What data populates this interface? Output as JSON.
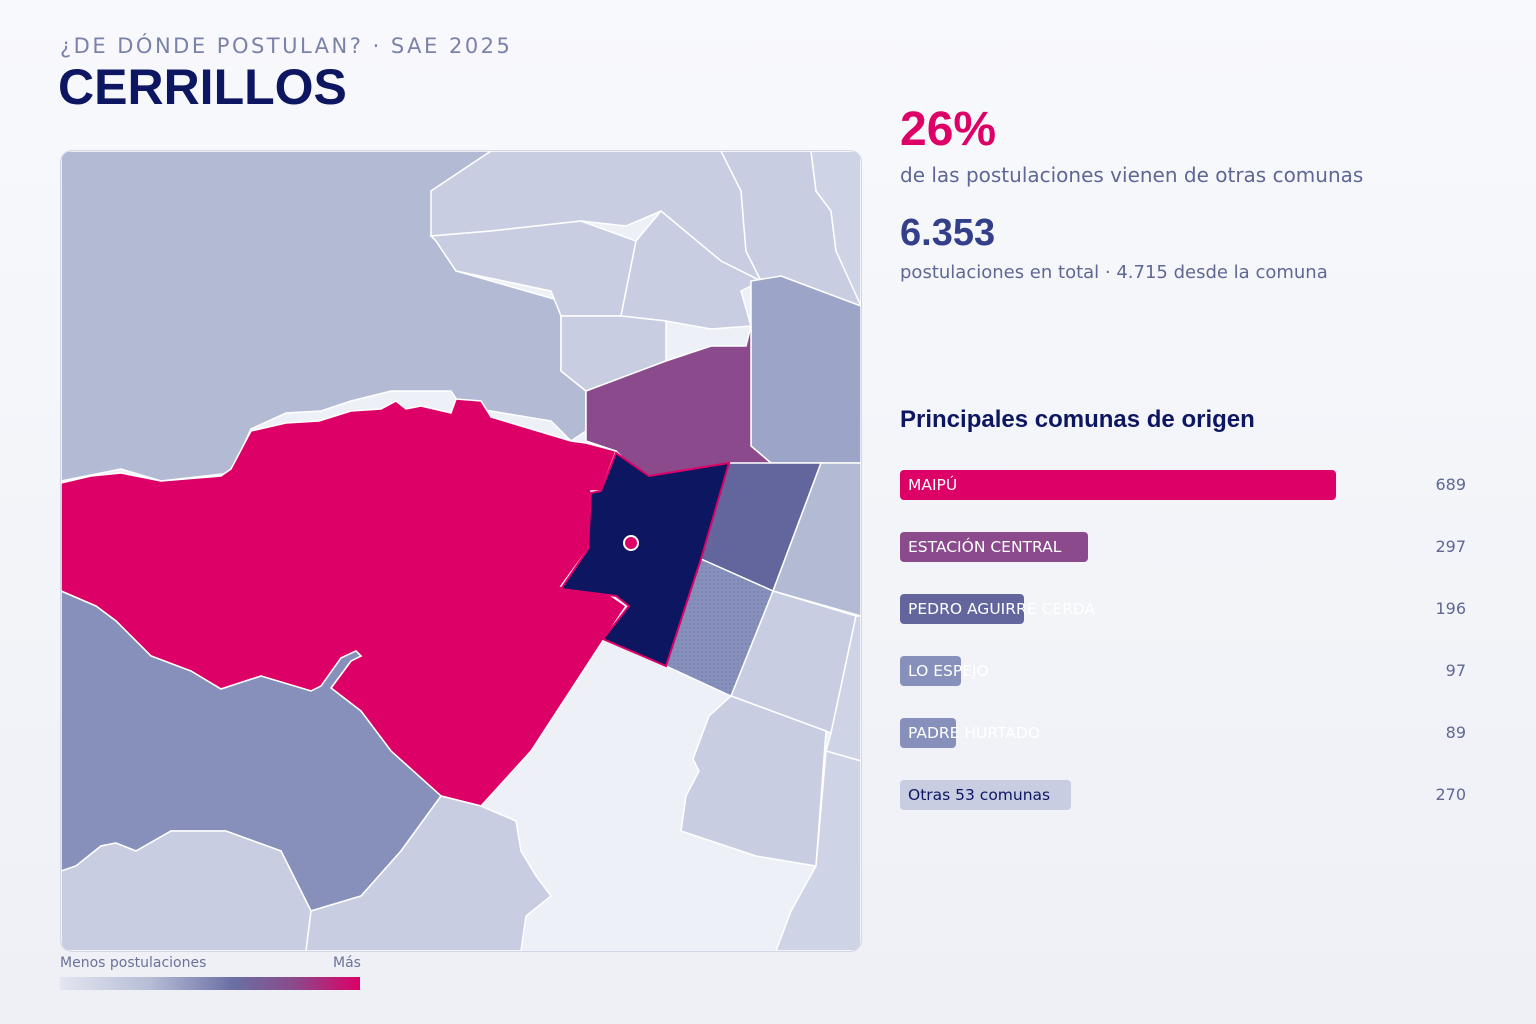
{
  "header": {
    "kicker": "¿DE DÓNDE POSTULAN? · SAE 2025",
    "title": "CERRILLOS"
  },
  "stats": {
    "external_share": "26%",
    "external_share_desc": "de las postulaciones vienen de otras comunas",
    "total": "6.353",
    "total_desc": "postulaciones en total · 4.715 desde la comuna"
  },
  "origin": {
    "title": "Principales comunas de origen",
    "items": [
      {
        "label": "MAIPÚ",
        "value": "689",
        "count": 689,
        "color": "#dd0066"
      },
      {
        "label": "ESTACIÓN CENTRAL",
        "value": "297",
        "count": 297,
        "color": "#8a4a8c"
      },
      {
        "label": "PEDRO AGUIRRE CERDA",
        "value": "196",
        "count": 196,
        "color": "#62669d"
      },
      {
        "label": "LO ESPEJO",
        "value": "97",
        "count": 97,
        "color": "#8690bb"
      },
      {
        "label": "PADRE HURTADO",
        "value": "89",
        "count": 89,
        "color": "#8690bb"
      },
      {
        "label": "Otras 53 comunas",
        "value": "270",
        "count": 270,
        "color": "#c8cde2"
      }
    ]
  },
  "legend": {
    "low": "Menos postulaciones",
    "high": "Más"
  },
  "map": {
    "selected": "Cerrillos",
    "colors": {
      "selected": "#0d1660",
      "maipu": "#dd0066",
      "estacion_central": "#8a4a8c",
      "pac": "#62669d",
      "lo_espejo": "#8690bb",
      "padre_hurtado": "#8690bb",
      "low": "#c8cde2",
      "mid": "#b3bbd4",
      "none": "#eef0f7"
    }
  }
}
